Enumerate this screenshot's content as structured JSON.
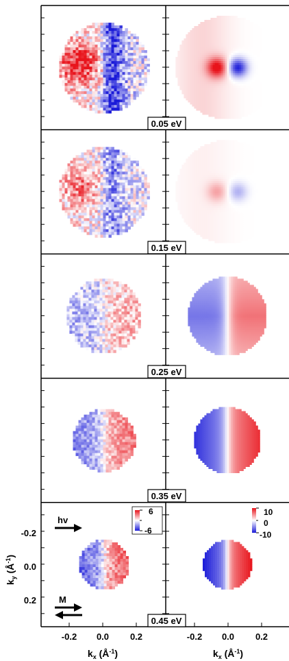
{
  "figure": {
    "panels": [
      {
        "energy_label": "0.05 eV",
        "exp": {
          "radius": 0.36,
          "pattern": "lobe_dipole",
          "amp": 0.85,
          "noise": 0.55
        },
        "calc": {
          "radius": 0.42,
          "pattern": "spot_dipole",
          "amp": 1.0
        }
      },
      {
        "energy_label": "0.15 eV",
        "exp": {
          "radius": 0.36,
          "pattern": "lobe_dipole",
          "amp": 0.5,
          "noise": 0.5
        },
        "calc": {
          "radius": 0.42,
          "pattern": "spot_dipole",
          "amp": 0.35
        }
      },
      {
        "energy_label": "0.25 eV",
        "exp": {
          "radius": 0.3,
          "pattern": "half_split_reversed",
          "amp": 0.3,
          "noise": 0.4
        },
        "calc": {
          "radius": 0.32,
          "pattern": "half_split_reversed",
          "amp": 0.6
        }
      },
      {
        "energy_label": "0.35 eV",
        "exp": {
          "radius": 0.25,
          "pattern": "half_split",
          "amp": 0.55,
          "noise": 0.3
        },
        "calc": {
          "radius": 0.27,
          "pattern": "half_split",
          "amp": 0.9
        }
      },
      {
        "energy_label": "0.45 eV",
        "exp": {
          "radius": 0.2,
          "pattern": "half_split",
          "amp": 0.65,
          "noise": 0.3
        },
        "calc": {
          "radius": 0.2,
          "pattern": "half_split",
          "amp": 1.0
        }
      }
    ],
    "x_ticks": [
      "-0.2",
      "0.0",
      "0.2"
    ],
    "y_ticks": [
      "-0.2",
      "0.0",
      "0.2"
    ],
    "xlabel_left": "kx (Å⁻¹)",
    "xlabel_right": "kx (Å⁻¹)",
    "ylabel": "ky (Å⁻¹)",
    "axis_symbol": "k",
    "axis_x_sub": "x",
    "axis_y_sub": "y",
    "axis_unit_open": "(Å",
    "axis_unit_sup": "-1",
    "axis_unit_close": ")",
    "photon_label": "hv",
    "magnetization_label": "M",
    "colorbar_exp": {
      "max": "6",
      "min": "-6"
    },
    "colorbar_calc": {
      "max": "10",
      "mid": "0",
      "min": "-10"
    },
    "colors": {
      "positive": "#e8141c",
      "negative": "#1a1ad8",
      "zero": "#ffffff",
      "frame": "#000000"
    }
  }
}
